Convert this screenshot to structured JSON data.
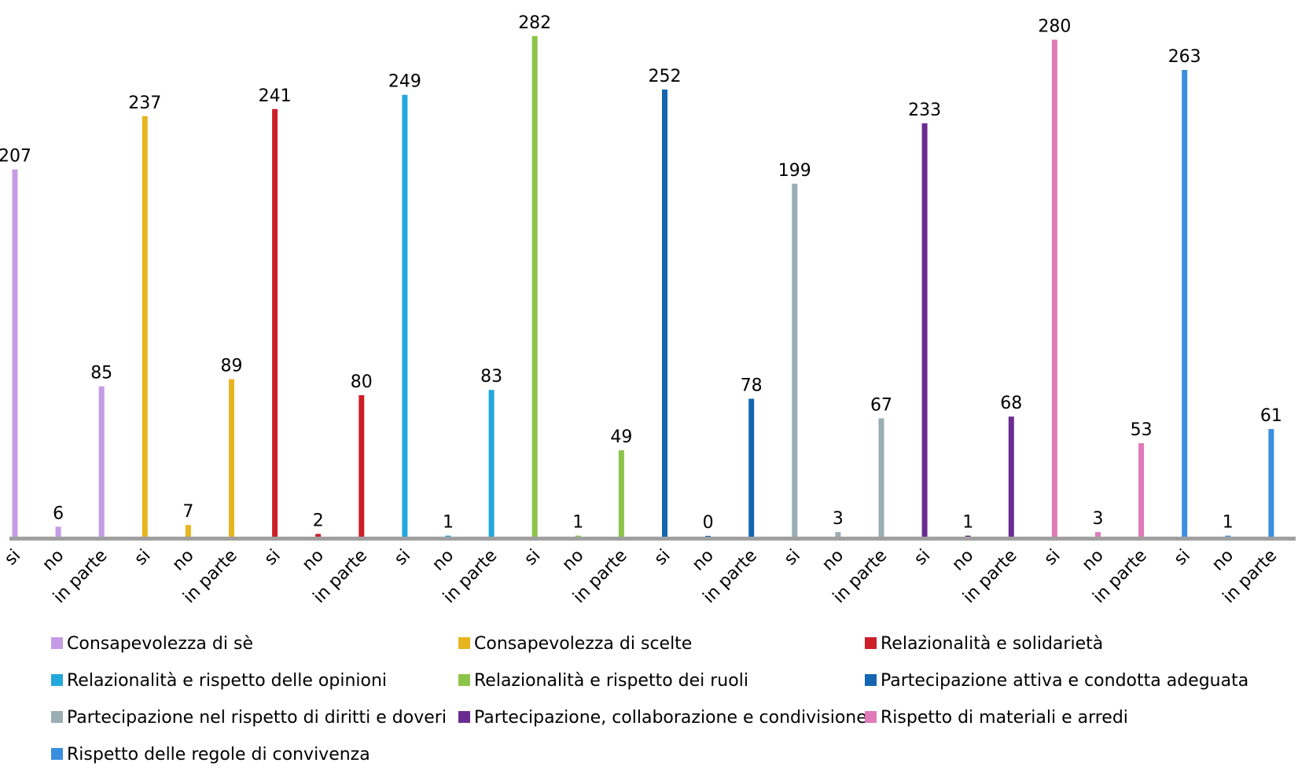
{
  "chart_data": {
    "type": "bar",
    "categories": [
      "si",
      "no",
      "in parte"
    ],
    "legend_position": "bottom",
    "grid": false,
    "ylim": [
      0,
      282
    ],
    "series": [
      {
        "name": "Consapevolezza di sè",
        "color": "#c59be6",
        "values": [
          207,
          6,
          85
        ]
      },
      {
        "name": "Consapevolezza di scelte",
        "color": "#e8b51f",
        "values": [
          237,
          7,
          89
        ]
      },
      {
        "name": "Relazionalità e solidarietà",
        "color": "#cc1f2a",
        "values": [
          241,
          2,
          80
        ]
      },
      {
        "name": "Relazionalità e rispetto delle opinioni",
        "color": "#22a8dc",
        "values": [
          249,
          1,
          83
        ]
      },
      {
        "name": "Relazionalità e rispetto dei ruoli",
        "color": "#8cc34a",
        "values": [
          282,
          1,
          49
        ]
      },
      {
        "name": "Partecipazione attiva e condotta adeguata",
        "color": "#1565b0",
        "values": [
          252,
          0,
          78
        ]
      },
      {
        "name": "Partecipazione nel rispetto di diritti e doveri",
        "color": "#9aaeb4",
        "values": [
          199,
          3,
          67
        ]
      },
      {
        "name": "Partecipazione, collaborazione e condivisione",
        "color": "#6a2c91",
        "values": [
          233,
          1,
          68
        ]
      },
      {
        "name": "Rispetto di materiali e arredi",
        "color": "#e07ab8",
        "values": [
          280,
          3,
          53
        ]
      },
      {
        "name": "Rispetto delle regole di convivenza",
        "color": "#3a8ee0",
        "values": [
          263,
          1,
          61
        ]
      }
    ]
  }
}
